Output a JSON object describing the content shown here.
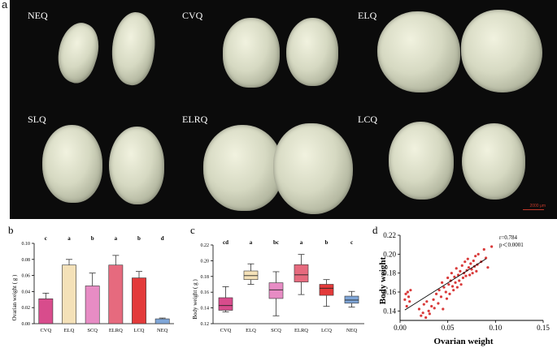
{
  "panel_a": {
    "letter": "a",
    "groups": [
      "NEQ",
      "CVQ",
      "ELQ",
      "SLQ",
      "ELRQ",
      "LCQ"
    ],
    "scale_bar": "2000 μm"
  },
  "chart_data": [
    {
      "panel": "b",
      "type": "bar",
      "ylabel": "Ovarian weight ( g )",
      "ylim": [
        0,
        0.1
      ],
      "yticks": [
        "0.00",
        "0.02",
        "0.04",
        "0.06",
        "0.08",
        "0.10"
      ],
      "categories": [
        "CVQ",
        "ELQ",
        "SCQ",
        "ELRQ",
        "LCQ",
        "NEQ"
      ],
      "values": [
        0.031,
        0.073,
        0.047,
        0.073,
        0.057,
        0.006
      ],
      "errors": [
        0.007,
        0.007,
        0.016,
        0.012,
        0.008,
        0.001
      ],
      "letters": [
        "c",
        "a",
        "b",
        "a",
        "b",
        "d"
      ],
      "colors": [
        "#d84c8c",
        "#f4e1b8",
        "#e78cc4",
        "#e66a7e",
        "#e33a3a",
        "#7fa6d8"
      ]
    },
    {
      "panel": "c",
      "type": "box",
      "ylabel": "Body weight ( g )",
      "ylim": [
        0.12,
        0.22
      ],
      "yticks": [
        "0.12",
        "0.14",
        "0.16",
        "0.18",
        "0.20",
        "0.22"
      ],
      "categories": [
        "CVQ",
        "ELQ",
        "SCQ",
        "ELRQ",
        "LCQ",
        "NEQ"
      ],
      "boxes": [
        {
          "min": 0.135,
          "q1": 0.137,
          "median": 0.143,
          "q3": 0.153,
          "max": 0.167
        },
        {
          "min": 0.17,
          "q1": 0.176,
          "median": 0.181,
          "q3": 0.187,
          "max": 0.196
        },
        {
          "min": 0.13,
          "q1": 0.152,
          "median": 0.163,
          "q3": 0.172,
          "max": 0.186
        },
        {
          "min": 0.157,
          "q1": 0.173,
          "median": 0.182,
          "q3": 0.195,
          "max": 0.208
        },
        {
          "min": 0.142,
          "q1": 0.156,
          "median": 0.165,
          "q3": 0.17,
          "max": 0.176
        },
        {
          "min": 0.141,
          "q1": 0.146,
          "median": 0.15,
          "q3": 0.155,
          "max": 0.161
        }
      ],
      "letters": [
        "cd",
        "a",
        "bc",
        "a",
        "b",
        "c"
      ],
      "colors": [
        "#d84c8c",
        "#f4e1b8",
        "#e78cc4",
        "#e66a7e",
        "#e33a3a",
        "#7fa6d8"
      ]
    },
    {
      "panel": "d",
      "type": "scatter",
      "xlabel": "Ovarian weight",
      "ylabel": "Body weight",
      "xlim": [
        0,
        0.15
      ],
      "ylim": [
        0.13,
        0.22
      ],
      "xticks": [
        "0.00",
        "0.05",
        "0.10",
        "0.15"
      ],
      "yticks": [
        "0.14",
        "0.16",
        "0.18",
        "0.20",
        "0.22"
      ],
      "annotation_r": "r=0.784",
      "annotation_p": "p＜0.0001",
      "fit_line": {
        "x": [
          0.005,
          0.09
        ],
        "y": [
          0.141,
          0.195
        ]
      },
      "point_color": "#d93a3a",
      "points": [
        [
          0.005,
          0.152
        ],
        [
          0.006,
          0.158
        ],
        [
          0.007,
          0.145
        ],
        [
          0.008,
          0.16
        ],
        [
          0.009,
          0.155
        ],
        [
          0.01,
          0.15
        ],
        [
          0.011,
          0.162
        ],
        [
          0.02,
          0.142
        ],
        [
          0.022,
          0.135
        ],
        [
          0.024,
          0.138
        ],
        [
          0.025,
          0.147
        ],
        [
          0.027,
          0.133
        ],
        [
          0.028,
          0.15
        ],
        [
          0.03,
          0.14
        ],
        [
          0.031,
          0.137
        ],
        [
          0.033,
          0.145
        ],
        [
          0.035,
          0.152
        ],
        [
          0.036,
          0.143
        ],
        [
          0.038,
          0.158
        ],
        [
          0.04,
          0.148
        ],
        [
          0.041,
          0.162
        ],
        [
          0.043,
          0.155
        ],
        [
          0.044,
          0.17
        ],
        [
          0.045,
          0.142
        ],
        [
          0.046,
          0.165
        ],
        [
          0.048,
          0.16
        ],
        [
          0.049,
          0.153
        ],
        [
          0.05,
          0.175
        ],
        [
          0.051,
          0.168
        ],
        [
          0.052,
          0.158
        ],
        [
          0.053,
          0.172
        ],
        [
          0.054,
          0.18
        ],
        [
          0.055,
          0.166
        ],
        [
          0.056,
          0.162
        ],
        [
          0.057,
          0.176
        ],
        [
          0.058,
          0.17
        ],
        [
          0.059,
          0.185
        ],
        [
          0.06,
          0.165
        ],
        [
          0.061,
          0.178
        ],
        [
          0.062,
          0.172
        ],
        [
          0.063,
          0.182
        ],
        [
          0.064,
          0.168
        ],
        [
          0.065,
          0.188
        ],
        [
          0.066,
          0.175
        ],
        [
          0.067,
          0.18
        ],
        [
          0.068,
          0.192
        ],
        [
          0.069,
          0.177
        ],
        [
          0.07,
          0.183
        ],
        [
          0.071,
          0.195
        ],
        [
          0.072,
          0.186
        ],
        [
          0.073,
          0.178
        ],
        [
          0.074,
          0.19
        ],
        [
          0.075,
          0.184
        ],
        [
          0.076,
          0.18
        ],
        [
          0.077,
          0.193
        ],
        [
          0.078,
          0.187
        ],
        [
          0.079,
          0.198
        ],
        [
          0.08,
          0.182
        ],
        [
          0.081,
          0.189
        ],
        [
          0.082,
          0.2
        ],
        [
          0.085,
          0.192
        ],
        [
          0.088,
          0.205
        ],
        [
          0.09,
          0.196
        ],
        [
          0.092,
          0.186
        ],
        [
          0.096,
          0.208
        ]
      ]
    }
  ]
}
